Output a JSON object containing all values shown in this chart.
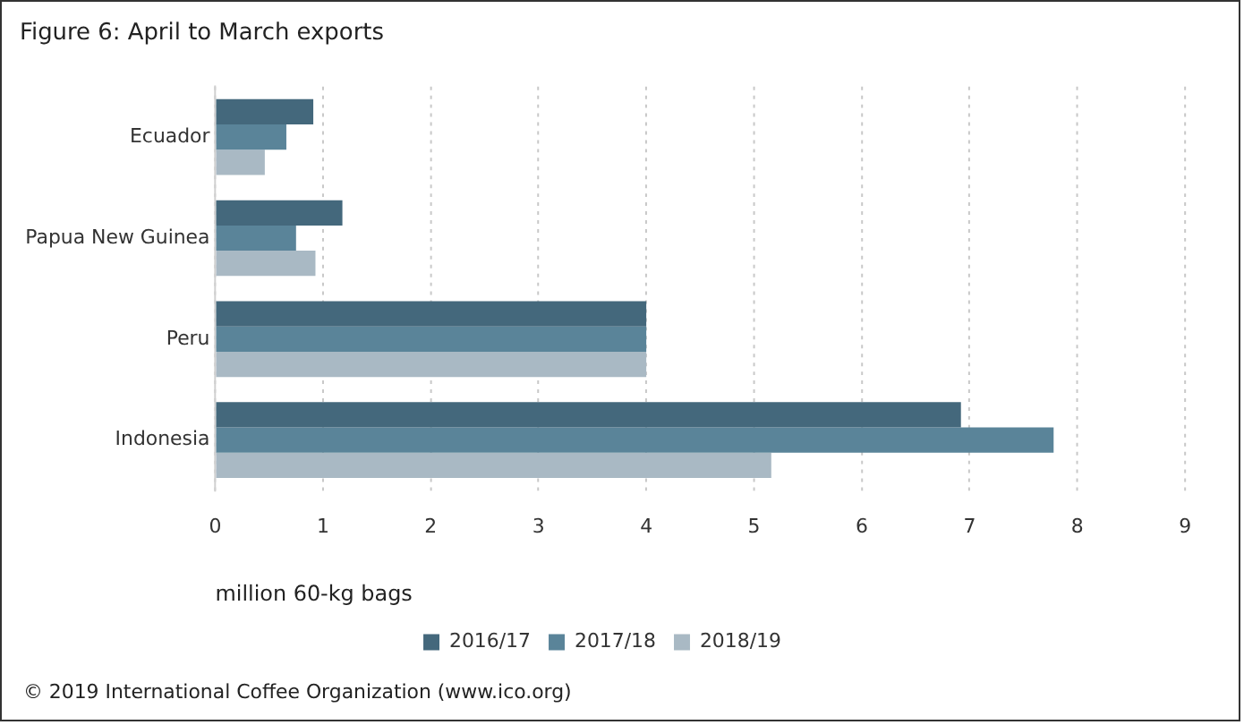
{
  "chart_data": {
    "type": "bar",
    "orientation": "horizontal",
    "title": "Figure 6: April to March exports",
    "categories": [
      "Ecuador",
      "Papua New Guinea",
      "Peru",
      "Indonesia"
    ],
    "series": [
      {
        "name": "2016/17",
        "color": "#44687c",
        "values": [
          0.91,
          1.18,
          4.0,
          6.92
        ]
      },
      {
        "name": "2017/18",
        "color": "#5a8499",
        "values": [
          0.66,
          0.75,
          4.0,
          7.78
        ]
      },
      {
        "name": "2018/19",
        "color": "#a9b9c4",
        "values": [
          0.46,
          0.93,
          4.0,
          5.16
        ]
      }
    ],
    "xlabel": "million 60-kg bags",
    "xlim": [
      0,
      9
    ],
    "xticks": [
      0,
      1,
      2,
      3,
      4,
      5,
      6,
      7,
      8,
      9
    ],
    "grid": "x",
    "legend": "bottom",
    "annotations": [
      "© 2019 International Coffee Organization (www.ico.org)"
    ]
  }
}
